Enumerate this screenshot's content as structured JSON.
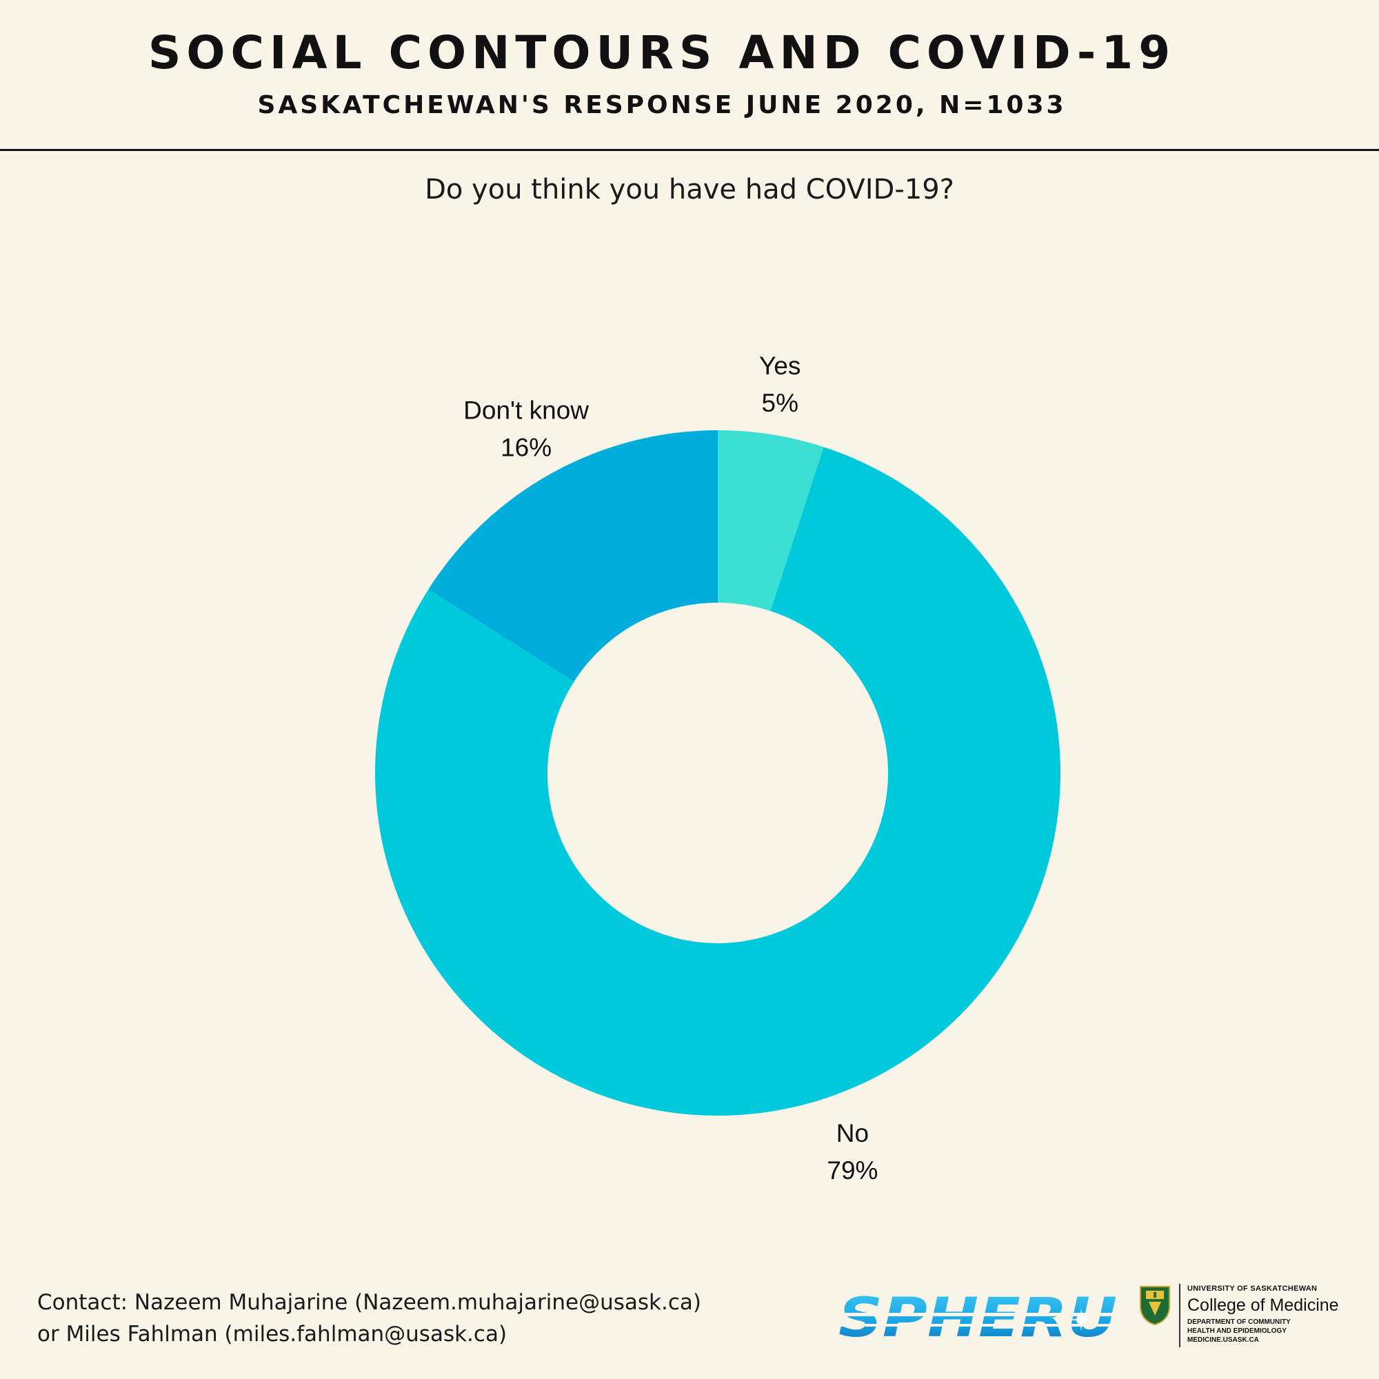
{
  "header": {
    "title": "SOCIAL CONTOURS AND COVID-19",
    "subtitle": "SASKATCHEWAN'S RESPONSE JUNE 2020, N=1033"
  },
  "question": "Do you think you have had COVID-19?",
  "chart_data": {
    "type": "pie",
    "style": "donut",
    "start": "top",
    "direction": "clockwise",
    "categories": [
      "Yes",
      "No",
      "Don't know"
    ],
    "values": [
      5,
      79,
      16
    ],
    "value_labels": [
      "5%",
      "79%",
      "16%"
    ],
    "colors": [
      "#3be0d2",
      "#00c9db",
      "#00addb"
    ]
  },
  "footer": {
    "contact_line1": "Contact: Nazeem Muhajarine (Nazeem.muhajarine@usask.ca)",
    "contact_line2": "or Miles Fahlman (miles.fahlman@usask.ca)"
  },
  "logos": {
    "spheru": {
      "text": "SPHERU",
      "color": "#1aa6e4"
    },
    "usask": {
      "university": "UNIVERSITY OF SASKATCHEWAN",
      "college": "College of Medicine",
      "department_line1": "DEPARTMENT OF COMMUNITY",
      "department_line2": "HEALTH AND EPIDEMIOLOGY",
      "website": "MEDICINE.USASK.CA"
    }
  }
}
